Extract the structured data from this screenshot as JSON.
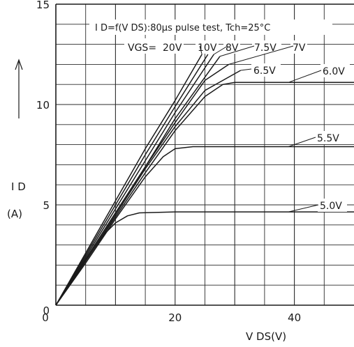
{
  "chart_data": {
    "type": "line",
    "annotation": "I D=f(V DS):80µs pulse test, Tch=25°C",
    "xlabel": "V DS(V)",
    "ylabel_main": "I D",
    "ylabel_unit": "(A)",
    "xlim": [
      0,
      50
    ],
    "ylim": [
      0,
      15
    ],
    "x_ticks": [
      0,
      20,
      40
    ],
    "y_ticks": [
      0,
      5,
      10,
      15
    ],
    "grid": true,
    "vgs_prefix": "VGS= ",
    "series": [
      {
        "name": "20V",
        "x": [
          0,
          5,
          10,
          15,
          20,
          24.5
        ],
        "y": [
          0,
          2.6,
          5.2,
          7.8,
          10.2,
          12.5
        ]
      },
      {
        "name": "10V",
        "x": [
          0,
          5,
          10,
          15,
          20,
          25.5
        ],
        "y": [
          0,
          2.5,
          5.0,
          7.5,
          9.9,
          12.5
        ]
      },
      {
        "name": "8V",
        "x": [
          0,
          5,
          10,
          15,
          20,
          26.5
        ],
        "y": [
          0,
          2.4,
          4.8,
          7.2,
          9.6,
          12.5
        ]
      },
      {
        "name": "7.5V",
        "x": [
          0,
          5,
          10,
          15,
          20,
          27.5
        ],
        "y": [
          0,
          2.3,
          4.6,
          6.9,
          9.3,
          12.4
        ]
      },
      {
        "name": "7V",
        "x": [
          0,
          5,
          10,
          15,
          20,
          25,
          29
        ],
        "y": [
          0,
          2.3,
          4.6,
          6.9,
          9.1,
          11.2,
          12.0
        ]
      },
      {
        "name": "6.5V",
        "x": [
          0,
          5,
          10,
          15,
          20,
          25,
          31
        ],
        "y": [
          0,
          2.2,
          4.5,
          6.8,
          8.9,
          10.7,
          11.7
        ]
      },
      {
        "name": "6.0V",
        "x": [
          0,
          5,
          10,
          15,
          20,
          25,
          28,
          30,
          40,
          50
        ],
        "y": [
          0,
          2.2,
          4.4,
          6.6,
          8.7,
          10.4,
          11.0,
          11.1,
          11.1,
          11.1
        ]
      },
      {
        "name": "5.5V",
        "x": [
          0,
          5,
          10,
          15,
          18,
          20,
          23,
          30,
          40,
          50
        ],
        "y": [
          0,
          2.1,
          4.3,
          6.4,
          7.4,
          7.8,
          7.9,
          7.9,
          7.9,
          7.9
        ]
      },
      {
        "name": "5.0V",
        "x": [
          0,
          4,
          8,
          10,
          12,
          14,
          20,
          30,
          40,
          50
        ],
        "y": [
          0,
          1.8,
          3.5,
          4.1,
          4.45,
          4.6,
          4.65,
          4.65,
          4.65,
          4.65
        ]
      }
    ]
  }
}
